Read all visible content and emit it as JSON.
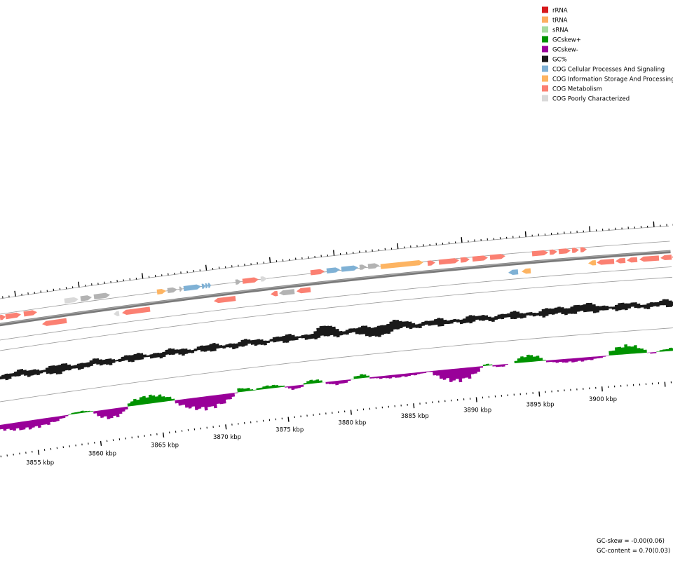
{
  "legend": {
    "items": [
      {
        "label": "rRNA",
        "color": "#d7191c"
      },
      {
        "label": "tRNA",
        "color": "#fdae61"
      },
      {
        "label": "sRNA",
        "color": "#a6dba0"
      },
      {
        "label": "GCskew+",
        "color": "#009300"
      },
      {
        "label": "GCskew-",
        "color": "#990099"
      },
      {
        "label": "GC%",
        "color": "#1a1a1a"
      },
      {
        "label": "COG Cellular Processes And Signaling",
        "color": "#7fb1d5"
      },
      {
        "label": "COG Information Storage And Processing",
        "color": "#fdb462"
      },
      {
        "label": "COG Metabolism",
        "color": "#fb8072"
      },
      {
        "label": "COG Poorly Characterized",
        "color": "#d9d9d9"
      }
    ]
  },
  "ruler": {
    "labels": [
      "3855 kbp",
      "3860 kbp",
      "3865 kbp",
      "3870 kbp",
      "3875 kbp",
      "3880 kbp",
      "3885 kbp",
      "3890 kbp",
      "3895 kbp",
      "3900 kbp"
    ]
  },
  "footer": {
    "gc_skew": "GC-skew = -0.00(0.06)",
    "gc_content": "GC-content = 0.70(0.03)"
  }
}
